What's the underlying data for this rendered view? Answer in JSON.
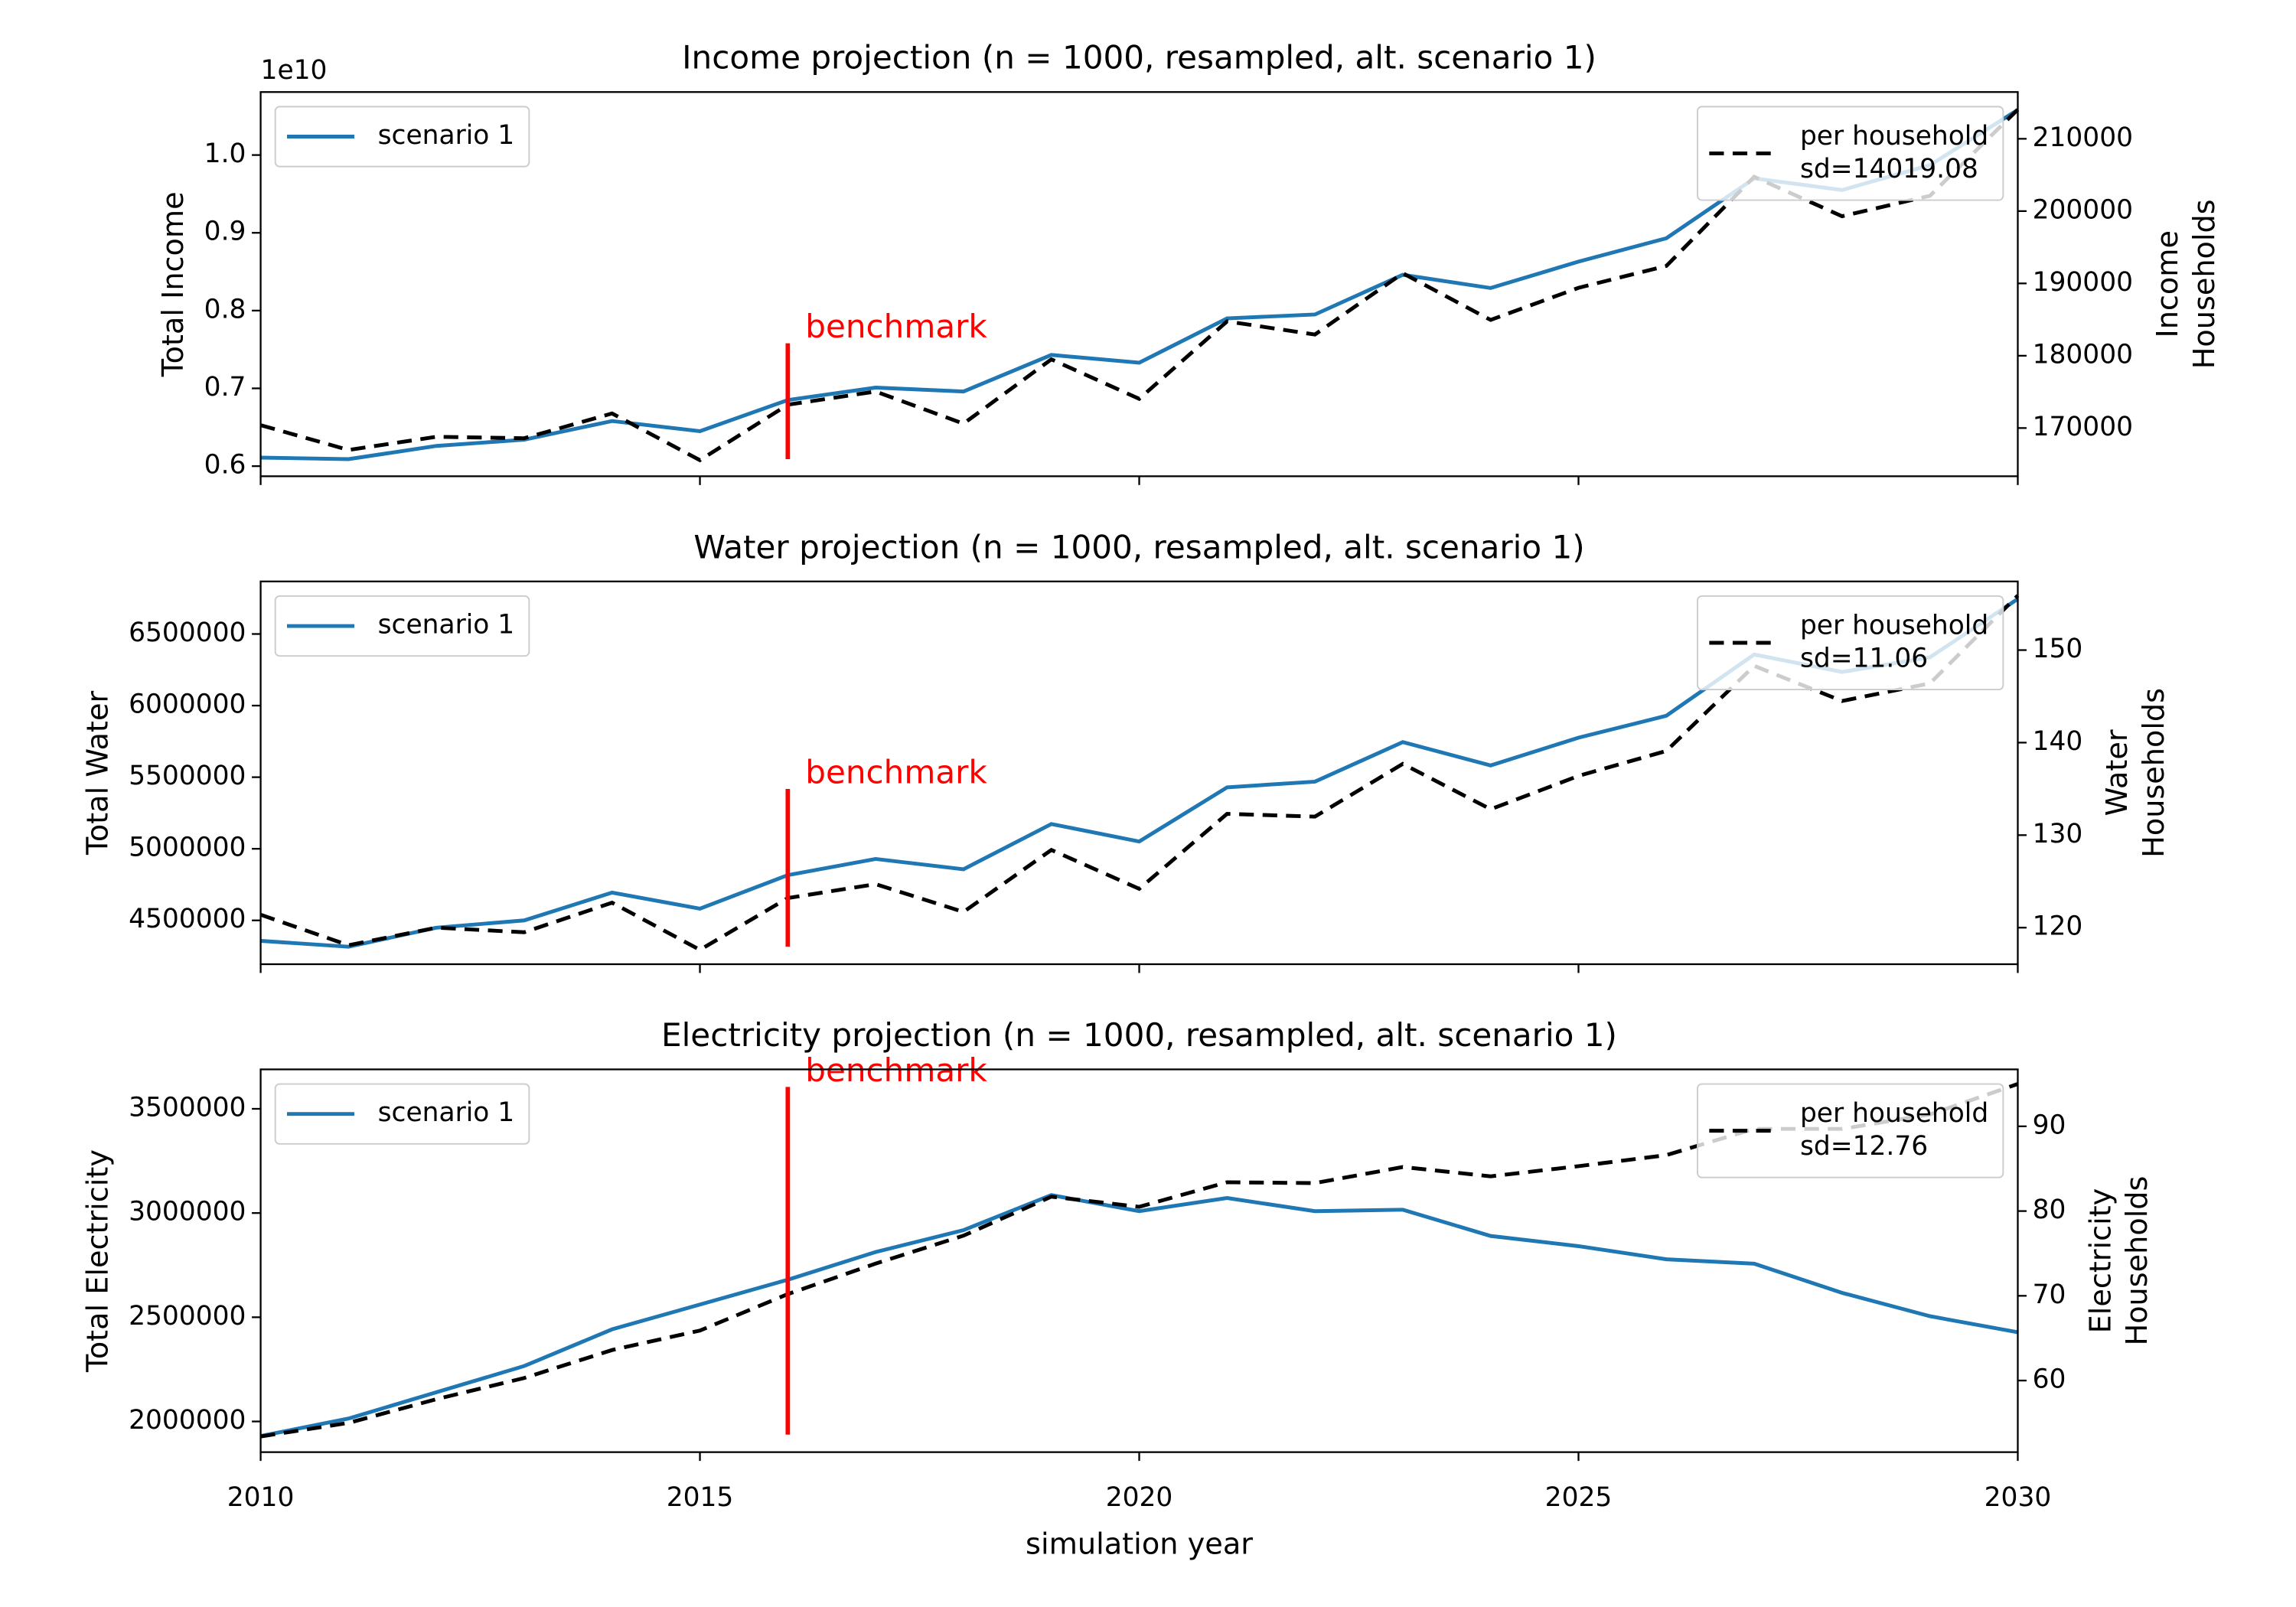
{
  "chart_data": [
    {
      "type": "line",
      "title": "Income projection (n = 1000, resampled, alt. scenario 1)",
      "ylabel": "Total Income",
      "y2label": "Income\nHouseholds",
      "y_offset_label": "1e10",
      "x": [
        2010,
        2011,
        2012,
        2013,
        2014,
        2015,
        2016,
        2017,
        2018,
        2019,
        2020,
        2021,
        2022,
        2023,
        2024,
        2025,
        2026,
        2027,
        2028,
        2029,
        2030
      ],
      "xlim": [
        2010,
        2030
      ],
      "xticks": [
        2010,
        2015,
        2020,
        2025,
        2030
      ],
      "xtick_labels": false,
      "ylim": [
        0.587,
        1.081
      ],
      "yticks": [
        0.6,
        0.7,
        0.8,
        0.9,
        {
          "value": 1.0,
          "label": "1.0"
        }
      ],
      "y2lim": [
        163333,
        216465
      ],
      "y2ticks": [
        170000,
        180000,
        190000,
        200000,
        210000
      ],
      "series": [
        {
          "name": "scenario 1",
          "color": "#1f77b4",
          "style": "solid",
          "legend": "upper left",
          "values": [
            0.611,
            0.609,
            0.626,
            0.634,
            0.658,
            0.645,
            0.685,
            0.701,
            0.696,
            0.743,
            0.733,
            0.79,
            0.795,
            0.846,
            0.829,
            0.863,
            0.893,
            0.97,
            0.955,
            0.987,
            1.058
          ]
        },
        {
          "name": "per household\nsd=14019.08",
          "color": "#000000",
          "style": "dashed",
          "axis": "y2",
          "legend": "upper right",
          "values": [
            170400,
            166970,
            168790,
            168590,
            172020,
            165560,
            173230,
            175050,
            170610,
            179500,
            174040,
            184750,
            182930,
            191410,
            184950,
            189390,
            192420,
            204750,
            199290,
            202120,
            214040
          ]
        }
      ],
      "benchmark": {
        "label": "benchmark",
        "x": 2016,
        "y": [
          0.609,
          0.758
        ],
        "color": "#ff0000"
      }
    },
    {
      "type": "line",
      "title": "Water projection (n = 1000, resampled, alt. scenario 1)",
      "ylabel": "Total Water",
      "y2label": "Water\nHouseholds",
      "x": [
        2010,
        2011,
        2012,
        2013,
        2014,
        2015,
        2016,
        2017,
        2018,
        2019,
        2020,
        2021,
        2022,
        2023,
        2024,
        2025,
        2026,
        2027,
        2028,
        2029,
        2030
      ],
      "xlim": [
        2010,
        2030
      ],
      "xticks": [
        2010,
        2015,
        2020,
        2025,
        2030
      ],
      "xtick_labels": false,
      "ylim": [
        4194000,
        6867000
      ],
      "yticks": [
        4500000,
        5000000,
        5500000,
        6000000,
        6500000
      ],
      "y2lim": [
        116.05,
        157.42
      ],
      "y2ticks": [
        120,
        130,
        140,
        150
      ],
      "series": [
        {
          "name": "scenario 1",
          "color": "#1f77b4",
          "style": "solid",
          "legend": "upper left",
          "values": [
            4357000,
            4316000,
            4449000,
            4500000,
            4694000,
            4582000,
            4816000,
            4929000,
            4857000,
            5173000,
            5051000,
            5429000,
            5469000,
            5745000,
            5582000,
            5776000,
            5929000,
            6357000,
            6235000,
            6337000,
            6745000
          ]
        },
        {
          "name": "per household\nsd=11.06",
          "color": "#000000",
          "style": "dashed",
          "axis": "y2",
          "legend": "upper right",
          "values": [
            121.4,
            118.1,
            120.0,
            119.5,
            122.7,
            117.6,
            123.2,
            124.7,
            121.7,
            128.4,
            124.2,
            132.3,
            132.0,
            137.7,
            132.8,
            136.4,
            139.1,
            148.3,
            144.5,
            146.4,
            155.9
          ]
        }
      ],
      "benchmark": {
        "label": "benchmark",
        "x": 2016,
        "y": [
          4316000,
          5418000
        ],
        "color": "#ff0000"
      }
    },
    {
      "type": "line",
      "title": "Electricity projection (n = 1000, resampled, alt. scenario 1)",
      "ylabel": "Total Electricity",
      "y2label": "Electricity\nHouseholds",
      "xlabel": "simulation year",
      "x": [
        2010,
        2011,
        2012,
        2013,
        2014,
        2015,
        2016,
        2017,
        2018,
        2019,
        2020,
        2021,
        2022,
        2023,
        2024,
        2025,
        2026,
        2027,
        2028,
        2029,
        2030
      ],
      "xlim": [
        2010,
        2030
      ],
      "xticks": [
        2010,
        2015,
        2020,
        2025,
        2030
      ],
      "ylim": [
        1852800,
        3689200
      ],
      "yticks": [
        2000000,
        2500000,
        3000000,
        3500000
      ],
      "y2lim": [
        51.55,
        96.72
      ],
      "y2ticks": [
        60,
        70,
        80,
        90
      ],
      "series": [
        {
          "name": "scenario 1",
          "color": "#1f77b4",
          "style": "solid",
          "legend": "upper left",
          "values": [
            1930000,
            2014000,
            2140000,
            2266000,
            2442000,
            2561000,
            2680000,
            2813000,
            2918000,
            3086000,
            3009000,
            3072000,
            3009000,
            3016000,
            2890000,
            2841000,
            2778000,
            2757000,
            2617000,
            2505000,
            2428000
          ]
        },
        {
          "name": "per household\nsd=12.76",
          "color": "#000000",
          "style": "dashed",
          "axis": "y2",
          "legend": "upper right",
          "values": [
            53.4,
            55.0,
            57.8,
            60.3,
            63.6,
            65.9,
            70.2,
            73.8,
            77.1,
            81.7,
            80.5,
            83.4,
            83.3,
            85.2,
            84.1,
            85.3,
            86.6,
            89.7,
            89.7,
            91.4,
            95.0
          ]
        }
      ],
      "benchmark": {
        "label": "benchmark",
        "x": 2016,
        "y": [
          1937000,
          3605000
        ],
        "color": "#ff0000"
      }
    }
  ]
}
